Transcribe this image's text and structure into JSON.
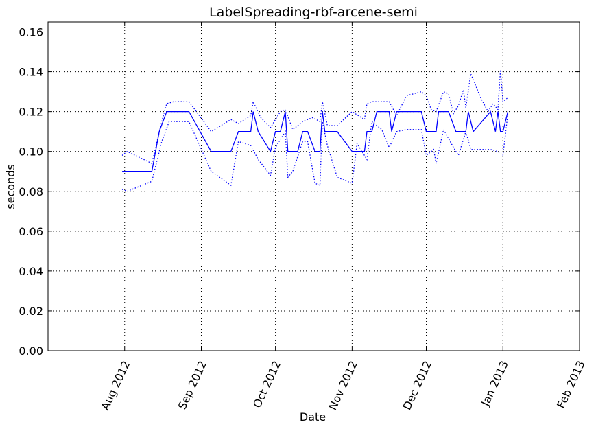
{
  "chart_data": {
    "type": "line",
    "title": "LabelSpreading-rbf-arcene-semi",
    "xlabel": "Date",
    "ylabel": "seconds",
    "xlim": [
      "2012-07-01",
      "2013-02-01"
    ],
    "ylim": [
      0,
      0.165
    ],
    "grid": true,
    "x_ticks": [
      "2012-08-01",
      "2012-09-01",
      "2012-10-01",
      "2012-11-01",
      "2012-12-01",
      "2013-01-01",
      "2013-02-01"
    ],
    "x_tick_labels": [
      "Aug 2012",
      "Sep 2012",
      "Oct 2012",
      "Nov 2012",
      "Dec 2012",
      "Jan 2013",
      "Feb 2013"
    ],
    "y_ticks": [
      0.0,
      0.02,
      0.04,
      0.06,
      0.08,
      0.1,
      0.12,
      0.14,
      0.16
    ],
    "y_tick_labels": [
      "0.00",
      "0.02",
      "0.04",
      "0.06",
      "0.08",
      "0.10",
      "0.12",
      "0.14",
      "0.16"
    ],
    "colors": {
      "series": "#0000ff"
    },
    "series": [
      {
        "style": "solid",
        "x": [
          "2012-07-31",
          "2012-08-12",
          "2012-08-15",
          "2012-08-18",
          "2012-08-27",
          "2012-09-05",
          "2012-09-13",
          "2012-09-16",
          "2012-09-21",
          "2012-09-22",
          "2012-09-24",
          "2012-09-29",
          "2012-10-01",
          "2012-10-03",
          "2012-10-05",
          "2012-10-06",
          "2012-10-10",
          "2012-10-12",
          "2012-10-14",
          "2012-10-17",
          "2012-10-19",
          "2012-10-20",
          "2012-10-21",
          "2012-10-26",
          "2012-11-01",
          "2012-11-06",
          "2012-11-07",
          "2012-11-09",
          "2012-11-11",
          "2012-11-16",
          "2012-11-17",
          "2012-11-19",
          "2012-11-29",
          "2012-12-01",
          "2012-12-05",
          "2012-12-06",
          "2012-12-10",
          "2012-12-13",
          "2012-12-17",
          "2012-12-18",
          "2012-12-20",
          "2012-12-27",
          "2012-12-29",
          "2012-12-30",
          "2012-12-31",
          "2013-01-01",
          "2013-01-03"
        ],
        "y": [
          0.09,
          0.09,
          0.11,
          0.12,
          0.12,
          0.1,
          0.1,
          0.11,
          0.11,
          0.12,
          0.11,
          0.1,
          0.11,
          0.11,
          0.12,
          0.1,
          0.1,
          0.11,
          0.11,
          0.1,
          0.1,
          0.12,
          0.11,
          0.11,
          0.1,
          0.1,
          0.11,
          0.11,
          0.12,
          0.12,
          0.11,
          0.12,
          0.12,
          0.11,
          0.11,
          0.12,
          0.12,
          0.11,
          0.11,
          0.12,
          0.11,
          0.12,
          0.11,
          0.12,
          0.11,
          0.11,
          0.12
        ]
      },
      {
        "style": "dotted",
        "x": [
          "2012-07-31",
          "2012-08-02",
          "2012-08-12",
          "2012-08-16",
          "2012-08-18",
          "2012-08-21",
          "2012-08-27",
          "2012-09-05",
          "2012-09-13",
          "2012-09-16",
          "2012-09-21",
          "2012-09-22",
          "2012-09-25",
          "2012-09-29",
          "2012-10-03",
          "2012-10-05",
          "2012-10-08",
          "2012-10-12",
          "2012-10-16",
          "2012-10-19",
          "2012-10-20",
          "2012-10-22",
          "2012-10-26",
          "2012-11-01",
          "2012-11-06",
          "2012-11-07",
          "2012-11-09",
          "2012-11-11",
          "2012-11-16",
          "2012-11-19",
          "2012-11-23",
          "2012-11-29",
          "2012-12-01",
          "2012-12-03",
          "2012-12-05",
          "2012-12-08",
          "2012-12-10",
          "2012-12-12",
          "2012-12-14",
          "2012-12-16",
          "2012-12-17",
          "2012-12-19",
          "2012-12-23",
          "2012-12-26",
          "2012-12-28",
          "2012-12-30",
          "2012-12-31",
          "2013-01-01",
          "2013-01-03"
        ],
        "y": [
          0.098,
          0.1,
          0.094,
          0.115,
          0.124,
          0.125,
          0.125,
          0.11,
          0.116,
          0.114,
          0.118,
          0.125,
          0.117,
          0.112,
          0.12,
          0.121,
          0.111,
          0.115,
          0.117,
          0.115,
          0.125,
          0.113,
          0.113,
          0.12,
          0.116,
          0.124,
          0.125,
          0.125,
          0.125,
          0.118,
          0.128,
          0.13,
          0.128,
          0.121,
          0.12,
          0.13,
          0.129,
          0.119,
          0.123,
          0.131,
          0.122,
          0.139,
          0.127,
          0.12,
          0.124,
          0.121,
          0.141,
          0.125,
          0.127
        ]
      },
      {
        "style": "dotted",
        "x": [
          "2012-07-31",
          "2012-08-02",
          "2012-08-12",
          "2012-08-16",
          "2012-08-19",
          "2012-08-27",
          "2012-09-05",
          "2012-09-13",
          "2012-09-16",
          "2012-09-21",
          "2012-09-24",
          "2012-09-29",
          "2012-10-01",
          "2012-10-05",
          "2012-10-06",
          "2012-10-08",
          "2012-10-12",
          "2012-10-14",
          "2012-10-17",
          "2012-10-19",
          "2012-10-20",
          "2012-10-22",
          "2012-10-26",
          "2012-11-01",
          "2012-11-03",
          "2012-11-07",
          "2012-11-09",
          "2012-11-13",
          "2012-11-16",
          "2012-11-19",
          "2012-11-23",
          "2012-11-29",
          "2012-12-01",
          "2012-12-04",
          "2012-12-05",
          "2012-12-08",
          "2012-12-12",
          "2012-12-14",
          "2012-12-17",
          "2012-12-19",
          "2012-12-23",
          "2012-12-27",
          "2012-12-30",
          "2013-01-01",
          "2013-01-03"
        ],
        "y": [
          0.081,
          0.08,
          0.085,
          0.105,
          0.115,
          0.115,
          0.09,
          0.083,
          0.105,
          0.103,
          0.096,
          0.088,
          0.102,
          0.11,
          0.087,
          0.09,
          0.105,
          0.105,
          0.084,
          0.083,
          0.115,
          0.103,
          0.087,
          0.084,
          0.104,
          0.096,
          0.115,
          0.111,
          0.102,
          0.11,
          0.111,
          0.111,
          0.098,
          0.101,
          0.094,
          0.111,
          0.102,
          0.098,
          0.11,
          0.101,
          0.101,
          0.101,
          0.1,
          0.098,
          0.119
        ]
      }
    ]
  }
}
